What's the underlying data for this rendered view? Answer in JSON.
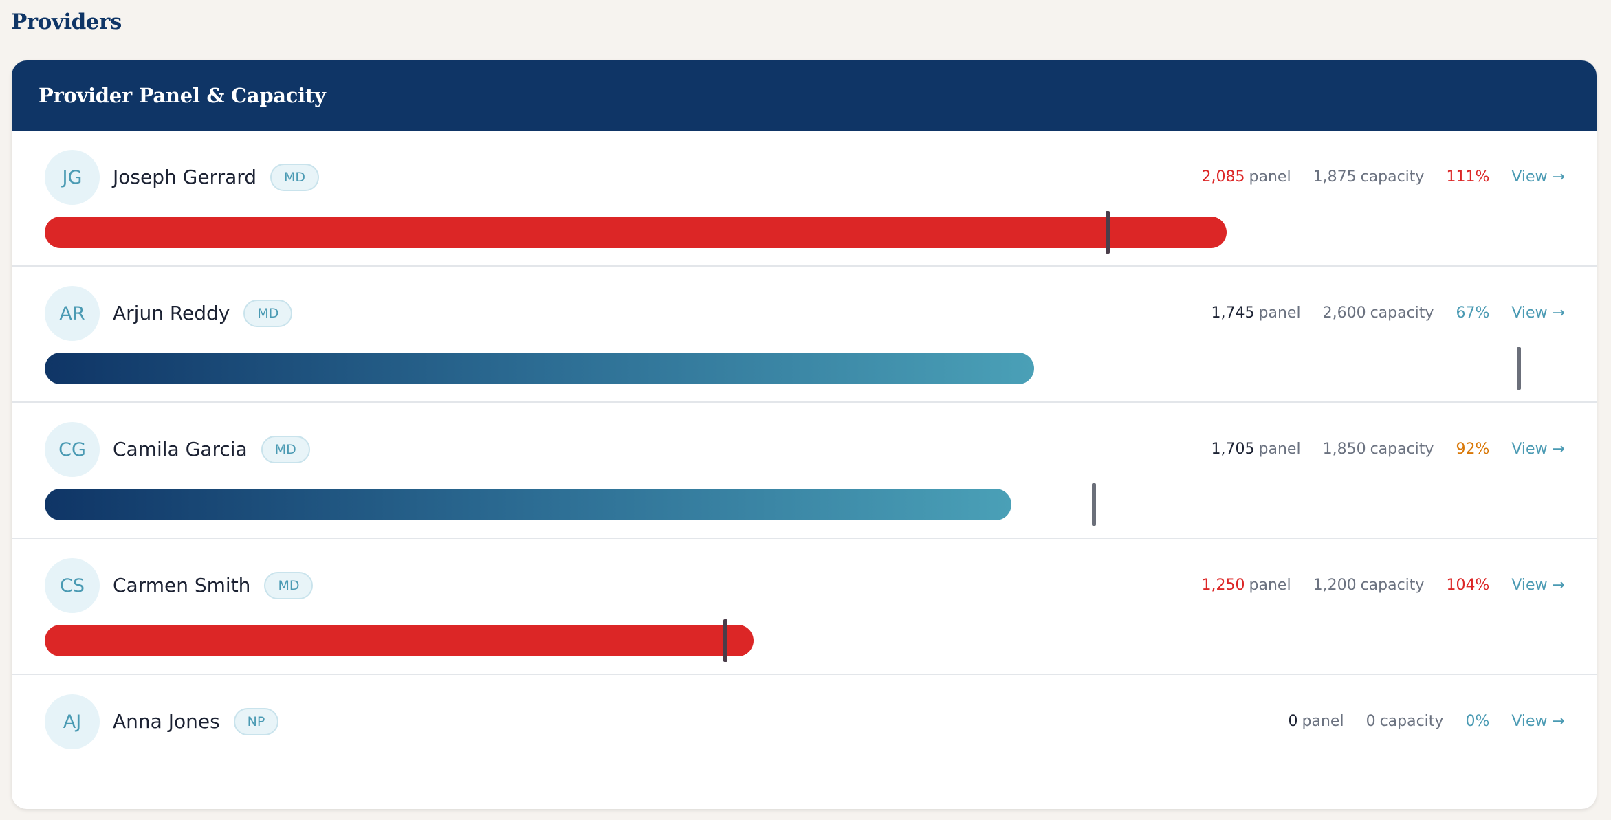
{
  "page": {
    "title": "Providers"
  },
  "card": {
    "title": "Provider Panel & Capacity"
  },
  "colors": {
    "header": "#0f3566",
    "over": "#dc2626",
    "warn": "#d97706",
    "ok": "#4a9ab3",
    "text": "#1c2233"
  },
  "labels": {
    "panel": "panel",
    "capacity": "capacity",
    "view": "View →"
  },
  "providers": [
    {
      "initials": "JG",
      "name": "Joseph Gerrard",
      "role": "MD",
      "panel": "2,085",
      "capacity": "1,875",
      "percent": "111%",
      "panel_value": 2085,
      "capacity_value": 1875,
      "status": "over"
    },
    {
      "initials": "AR",
      "name": "Arjun Reddy",
      "role": "MD",
      "panel": "1,745",
      "capacity": "2,600",
      "percent": "67%",
      "panel_value": 1745,
      "capacity_value": 2600,
      "status": "ok"
    },
    {
      "initials": "CG",
      "name": "Camila Garcia",
      "role": "MD",
      "panel": "1,705",
      "capacity": "1,850",
      "percent": "92%",
      "panel_value": 1705,
      "capacity_value": 1850,
      "status": "warn"
    },
    {
      "initials": "CS",
      "name": "Carmen Smith",
      "role": "MD",
      "panel": "1,250",
      "capacity": "1,200",
      "percent": "104%",
      "panel_value": 1250,
      "capacity_value": 1200,
      "status": "over"
    },
    {
      "initials": "AJ",
      "name": "Anna Jones",
      "role": "NP",
      "panel": "0",
      "capacity": "0",
      "percent": "0%",
      "panel_value": 0,
      "capacity_value": 0,
      "status": "ok"
    }
  ]
}
